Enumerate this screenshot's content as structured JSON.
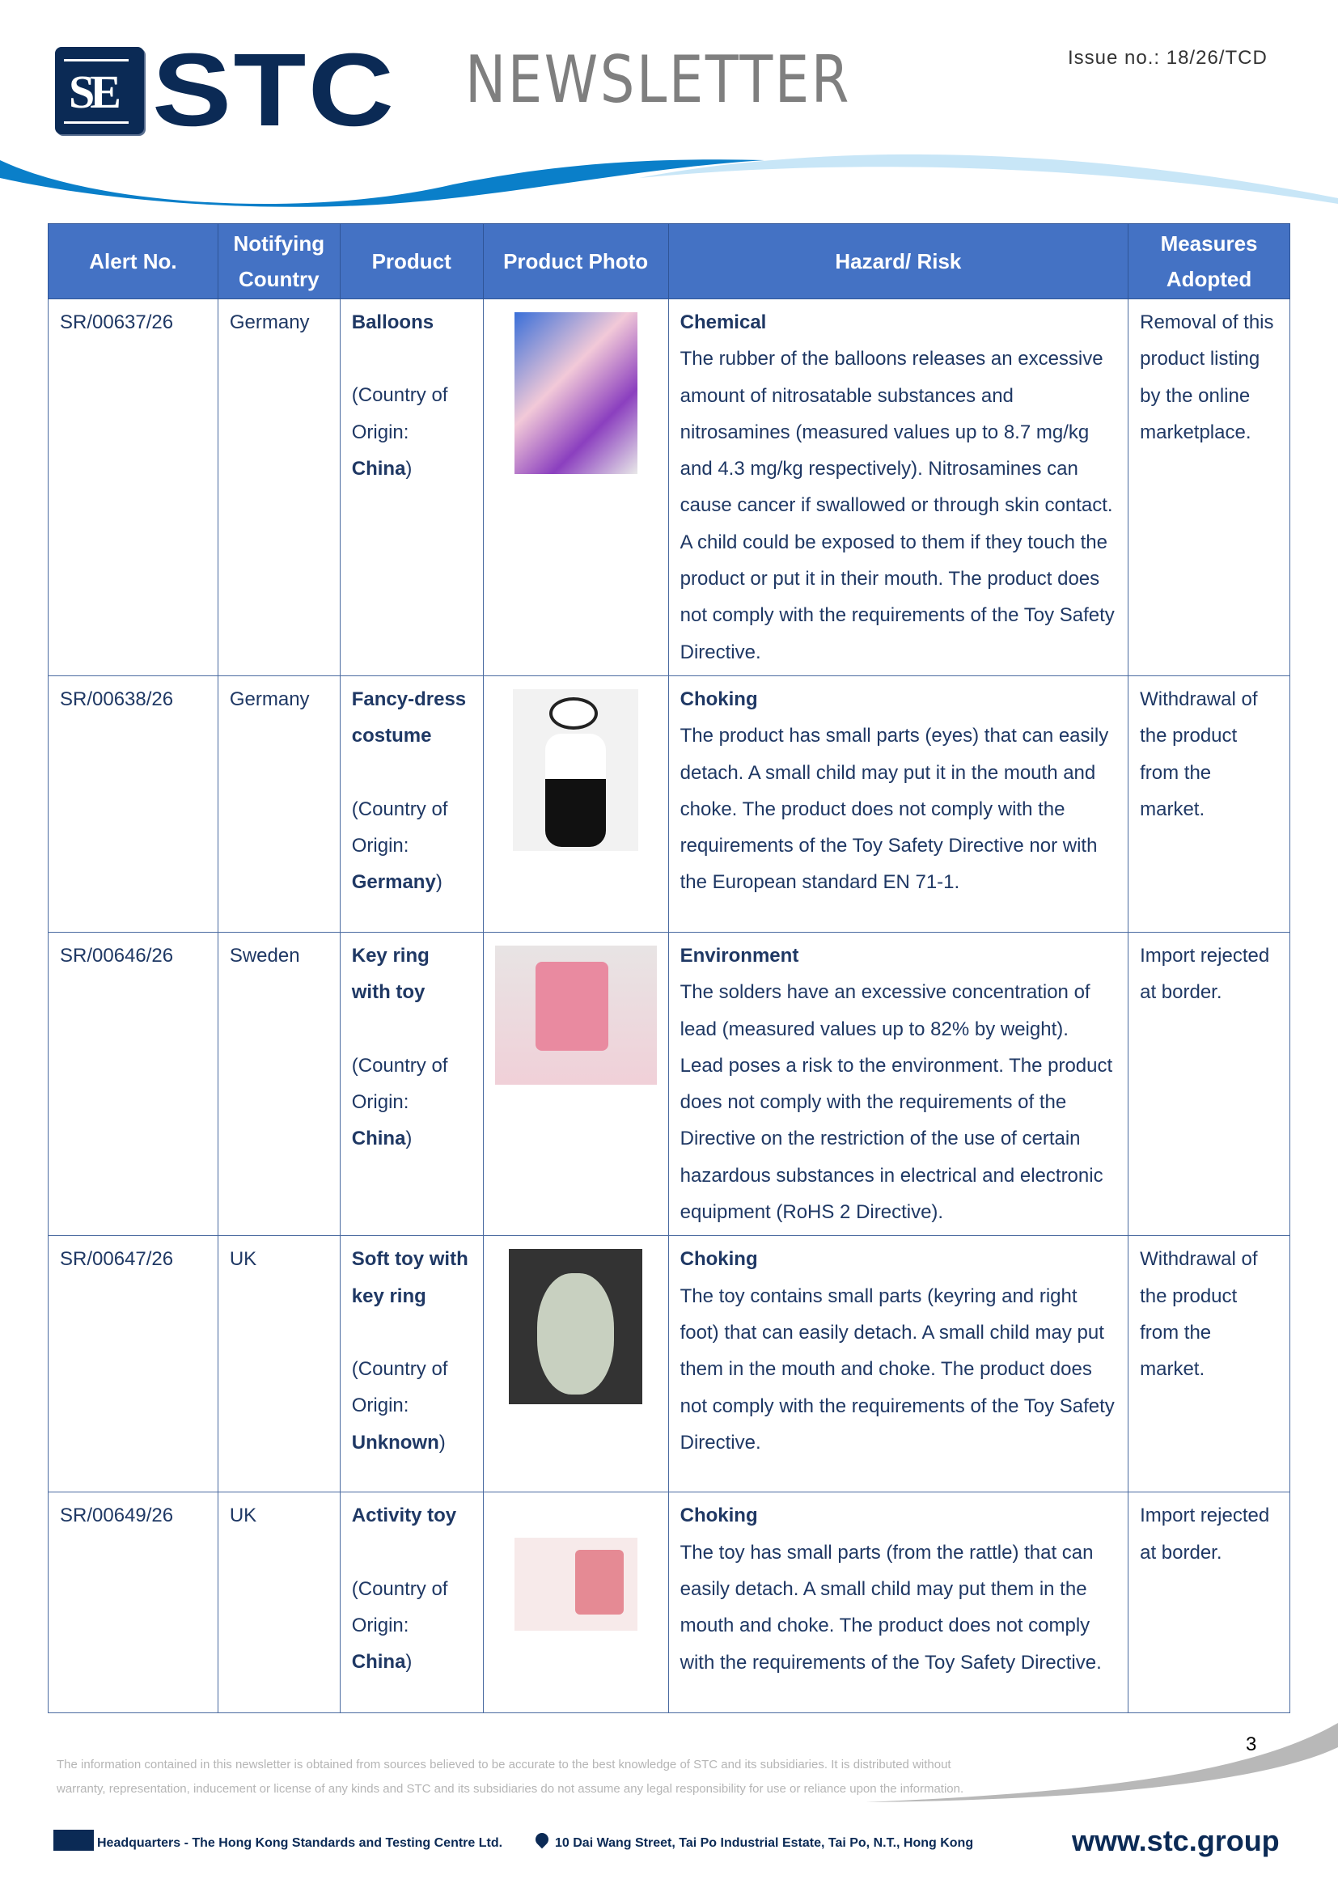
{
  "header": {
    "logo_text": "STC",
    "title": "NEWSLETTER",
    "issue": "Issue no.: 18/26/TCD"
  },
  "table": {
    "columns": [
      "Alert No.",
      "Notifying Country",
      "Product",
      "Product Photo",
      "Hazard/ Risk",
      "Measures Adopted"
    ],
    "rows": [
      {
        "alert": "SR/00637/26",
        "country": "Germany",
        "product": "Balloons",
        "origin_prefix": "(Country of Origin: ",
        "origin": "China",
        "origin_suffix": ")",
        "photo": "balloons-photo",
        "hazard": "Chemical",
        "description": "The rubber of the balloons releases an excessive amount of nitrosatable substances and nitrosamines (measured values up to 8.7 mg/kg and 4.3 mg/kg respectively). Nitrosamines can cause cancer if swallowed or through skin contact. A child could be exposed to them if they touch the product or put it in their mouth. The product does not comply with the requirements of the Toy Safety Directive.",
        "measure": "Removal of this product listing by the online marketplace."
      },
      {
        "alert": "SR/00638/26",
        "country": "Germany",
        "product": "Fancy-dress costume",
        "origin_prefix": "(Country of Origin: ",
        "origin": "Germany",
        "origin_suffix": ")",
        "photo": "panda-costume-photo",
        "hazard": "Choking",
        "description": "The product has small parts (eyes) that can easily detach. A small child may put it in the mouth and choke. The product does not comply with the requirements of the Toy Safety Directive nor with the European standard EN 71-1.",
        "measure": "Withdrawal of the product from the market."
      },
      {
        "alert": "SR/00646/26",
        "country": "Sweden",
        "product": "Key ring with toy",
        "origin_prefix": "(Country of Origin: ",
        "origin": "China",
        "origin_suffix": ")",
        "photo": "key-ring-photo",
        "hazard": "Environment",
        "description": "The solders have an excessive concentration of lead (measured values up to 82% by weight). Lead poses a risk to the environment. The product does not comply with the requirements of the Directive on the restriction of the use of certain hazardous substances in electrical and electronic equipment (RoHS 2 Directive).",
        "measure": "Import rejected at border."
      },
      {
        "alert": "SR/00647/26",
        "country": "UK",
        "product": "Soft toy with key ring",
        "origin_prefix": "(Country of Origin: ",
        "origin": "Unknown",
        "origin_suffix": ")",
        "photo": "soft-toy-photo",
        "hazard": "Choking",
        "description": "The toy contains small parts (keyring and right foot) that can easily detach. A small child may put them in the mouth and choke. The product does not comply with the requirements of the Toy Safety Directive.",
        "measure": "Withdrawal of the product from the market."
      },
      {
        "alert": "SR/00649/26",
        "country": "UK",
        "product": "Activity toy",
        "origin_prefix": "(Country of Origin: ",
        "origin": "China",
        "origin_suffix": ")",
        "photo": "activity-toy-photo",
        "hazard": "Choking",
        "description": "The toy has small parts (from the rattle) that can easily detach. A small child may put them in the mouth and choke. The product does not comply with the requirements of the Toy Safety Directive.",
        "measure": "Import rejected at border."
      }
    ]
  },
  "footer": {
    "page_number": "3",
    "disclaimer_1": "The information contained in this newsletter is obtained from sources believed to be accurate to the best knowledge of STC and its subsidiaries. It is distributed without",
    "disclaimer_2": "warranty, representation, inducement or license of any kinds and STC and its subsidiaries do not assume any legal responsibility for use or reliance upon the information.",
    "headquarters": "Headquarters - The Hong Kong Standards and Testing Centre Ltd.",
    "address": "10 Dai Wang Street, Tai Po Industrial Estate, Tai Po, N.T., Hong Kong",
    "website": "www.stc.group"
  },
  "colors": {
    "header_bg": "#4472c4",
    "brand": "#0b2a55"
  }
}
